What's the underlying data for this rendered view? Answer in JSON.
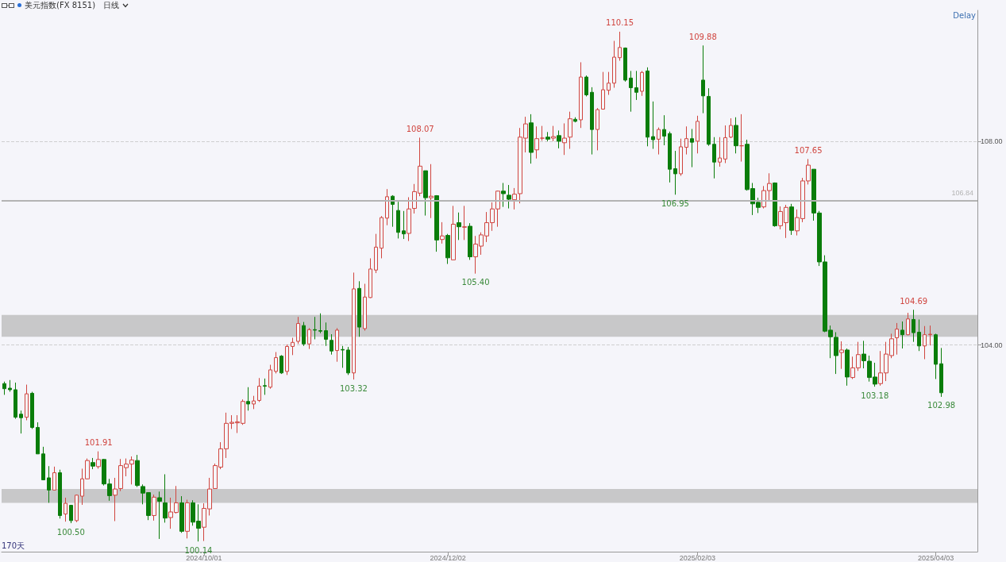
{
  "chart_data": {
    "type": "candlestick",
    "title": "美元指数(FX 8151)",
    "subtitle": "日线",
    "annotations": [
      "Delay",
      "170天",
      {
        "text": "110.15",
        "y": 110.15
      },
      {
        "text": "109.88",
        "y": 109.88
      },
      {
        "text": "108.07",
        "y": 108.07
      },
      {
        "text": "107.65",
        "y": 107.65
      },
      {
        "text": "106.95",
        "y": 106.95
      },
      {
        "text": "105.40",
        "y": 105.4
      },
      {
        "text": "104.69",
        "y": 104.69
      },
      {
        "text": "103.32",
        "y": 103.32
      },
      {
        "text": "103.18",
        "y": 103.18
      },
      {
        "text": "102.98",
        "y": 102.98
      },
      {
        "text": "101.91",
        "y": 101.91
      },
      {
        "text": "100.50",
        "y": 100.5
      },
      {
        "text": "100.14",
        "y": 100.14
      }
    ],
    "categories": [
      null,
      null,
      null,
      null,
      null,
      null,
      null,
      null,
      null,
      null,
      null,
      null,
      null,
      null,
      null,
      null,
      null,
      null,
      null,
      null,
      null,
      null,
      null,
      null,
      null,
      null,
      null,
      null,
      null,
      null,
      null,
      null,
      null,
      null,
      null,
      null,
      "2024/10/01",
      null,
      null,
      null,
      null,
      null,
      null,
      null,
      null,
      null,
      null,
      null,
      null,
      null,
      null,
      null,
      null,
      null,
      null,
      null,
      null,
      null,
      null,
      null,
      null,
      null,
      null,
      null,
      null,
      null,
      null,
      null,
      null,
      null,
      null,
      null,
      null,
      null,
      null,
      null,
      null,
      null,
      null,
      null,
      "2024/12/02",
      null,
      null,
      null,
      null,
      null,
      null,
      null,
      null,
      null,
      null,
      null,
      null,
      null,
      null,
      null,
      null,
      null,
      null,
      null,
      null,
      null,
      null,
      null,
      null,
      null,
      null,
      null,
      null,
      null,
      null,
      null,
      null,
      null,
      null,
      null,
      null,
      null,
      null,
      null,
      null,
      null,
      null,
      null,
      null,
      "2025/02/03",
      null,
      null,
      null,
      null,
      null,
      null,
      null,
      null,
      null,
      null,
      null,
      null,
      null,
      null,
      null,
      null,
      null,
      null,
      null,
      null,
      null,
      null,
      null,
      null,
      null,
      null,
      null,
      null,
      null,
      null,
      null,
      null,
      null,
      null,
      null,
      null,
      null,
      null,
      null,
      null,
      null,
      null,
      "2025/04/03",
      null
    ],
    "ohlc": [
      [
        103.24,
        103.28,
        103.02,
        103.14
      ],
      [
        103.15,
        103.31,
        103.08,
        103.12
      ],
      [
        103.12,
        103.26,
        102.55,
        102.58
      ],
      [
        102.64,
        102.71,
        102.26,
        102.57
      ],
      [
        102.58,
        103.22,
        102.52,
        103.04
      ],
      [
        103.05,
        103.08,
        102.35,
        102.38
      ],
      [
        102.38,
        102.48,
        101.86,
        101.86
      ],
      [
        101.86,
        102.0,
        101.35,
        101.35
      ],
      [
        101.39,
        101.62,
        100.9,
        101.15
      ],
      [
        101.15,
        101.61,
        101.15,
        101.49
      ],
      [
        101.49,
        101.55,
        100.59,
        100.65
      ],
      [
        100.68,
        101.0,
        100.53,
        100.89
      ],
      [
        100.85,
        100.86,
        100.5,
        100.55
      ],
      [
        100.55,
        101.06,
        100.52,
        101.05
      ],
      [
        101.03,
        101.57,
        100.86,
        101.37
      ],
      [
        101.37,
        101.77,
        101.36,
        101.73
      ],
      [
        101.69,
        101.78,
        101.56,
        101.62
      ],
      [
        101.61,
        101.91,
        101.57,
        101.75
      ],
      [
        101.75,
        101.76,
        101.24,
        101.27
      ],
      [
        101.27,
        101.37,
        100.94,
        101.04
      ],
      [
        101.05,
        101.39,
        100.54,
        101.17
      ],
      [
        101.18,
        101.76,
        101.13,
        101.63
      ],
      [
        101.59,
        101.77,
        101.42,
        101.66
      ],
      [
        101.66,
        101.81,
        101.26,
        101.74
      ],
      [
        101.73,
        101.84,
        101.21,
        101.24
      ],
      [
        101.22,
        101.26,
        100.87,
        101.09
      ],
      [
        101.1,
        101.1,
        100.56,
        100.65
      ],
      [
        100.65,
        101.06,
        100.55,
        101.01
      ],
      [
        101.0,
        101.12,
        100.19,
        100.93
      ],
      [
        100.9,
        101.46,
        100.51,
        100.6
      ],
      [
        100.61,
        101.0,
        100.39,
        100.72
      ],
      [
        100.71,
        101.23,
        100.69,
        100.9
      ],
      [
        100.9,
        101.03,
        100.31,
        100.34
      ],
      [
        100.34,
        100.96,
        100.2,
        100.9
      ],
      [
        100.9,
        100.95,
        100.45,
        100.52
      ],
      [
        100.54,
        100.87,
        100.14,
        100.4
      ],
      [
        100.42,
        100.89,
        100.15,
        100.79
      ],
      [
        100.78,
        101.39,
        100.65,
        101.17
      ],
      [
        101.18,
        101.67,
        101.18,
        101.63
      ],
      [
        101.6,
        102.09,
        101.56,
        101.96
      ],
      [
        101.96,
        102.67,
        101.78,
        102.46
      ],
      [
        102.46,
        102.62,
        102.35,
        102.48
      ],
      [
        102.47,
        102.62,
        102.27,
        102.49
      ],
      [
        102.46,
        102.93,
        102.43,
        102.89
      ],
      [
        102.89,
        103.17,
        102.71,
        102.84
      ],
      [
        102.84,
        103.0,
        102.74,
        102.9
      ],
      [
        102.91,
        103.35,
        102.88,
        103.19
      ],
      [
        103.2,
        103.34,
        103.02,
        103.19
      ],
      [
        103.17,
        103.61,
        103.14,
        103.51
      ],
      [
        103.48,
        103.86,
        103.44,
        103.75
      ],
      [
        103.78,
        103.8,
        103.43,
        103.45
      ],
      [
        103.48,
        104.01,
        103.41,
        103.97
      ],
      [
        103.97,
        104.14,
        103.8,
        104.05
      ],
      [
        104.07,
        104.55,
        104.02,
        104.42
      ],
      [
        104.38,
        104.45,
        103.98,
        104.02
      ],
      [
        104.02,
        104.33,
        103.92,
        104.3
      ],
      [
        104.3,
        104.55,
        104.11,
        104.29
      ],
      [
        104.28,
        104.62,
        104.23,
        104.27
      ],
      [
        104.28,
        104.44,
        103.98,
        104.11
      ],
      [
        104.09,
        104.21,
        103.81,
        103.88
      ],
      [
        103.89,
        104.33,
        103.67,
        104.29
      ],
      [
        103.91,
        103.98,
        103.55,
        103.9
      ],
      [
        103.9,
        103.96,
        103.41,
        103.45
      ],
      [
        103.45,
        105.42,
        103.32,
        105.1
      ],
      [
        105.11,
        105.25,
        104.16,
        104.35
      ],
      [
        104.32,
        105.2,
        104.28,
        104.94
      ],
      [
        104.93,
        105.7,
        104.92,
        105.49
      ],
      [
        105.47,
        106.18,
        105.41,
        105.92
      ],
      [
        105.9,
        106.53,
        105.7,
        106.5
      ],
      [
        106.49,
        107.06,
        106.35,
        106.91
      ],
      [
        106.92,
        106.94,
        106.32,
        106.76
      ],
      [
        106.64,
        106.81,
        106.09,
        106.21
      ],
      [
        106.24,
        106.63,
        106.08,
        106.18
      ],
      [
        106.19,
        106.9,
        106.04,
        106.67
      ],
      [
        106.68,
        107.16,
        106.58,
        107.01
      ],
      [
        106.98,
        108.07,
        106.92,
        107.51
      ],
      [
        107.42,
        107.42,
        106.54,
        106.89
      ],
      [
        106.89,
        107.55,
        106.49,
        106.92
      ],
      [
        106.93,
        106.94,
        105.83,
        106.06
      ],
      [
        106.07,
        106.41,
        105.99,
        106.14
      ],
      [
        106.15,
        106.18,
        105.59,
        105.71
      ],
      [
        105.67,
        106.73,
        105.67,
        106.37
      ],
      [
        106.4,
        106.6,
        106.06,
        106.32
      ],
      [
        106.31,
        106.73,
        106.06,
        106.32
      ],
      [
        106.33,
        106.39,
        105.67,
        105.73
      ],
      [
        105.73,
        106.14,
        105.4,
        105.98
      ],
      [
        105.94,
        106.21,
        105.77,
        106.16
      ],
      [
        106.14,
        106.61,
        106.02,
        106.4
      ],
      [
        106.4,
        106.8,
        106.24,
        106.67
      ],
      [
        106.67,
        107.03,
        106.32,
        107.02
      ],
      [
        107.02,
        107.18,
        106.71,
        106.97
      ],
      [
        106.94,
        107.14,
        106.68,
        106.86
      ],
      [
        106.85,
        107.08,
        106.66,
        106.96
      ],
      [
        106.97,
        108.26,
        106.78,
        108.08
      ],
      [
        108.06,
        108.48,
        107.78,
        108.34
      ],
      [
        108.36,
        108.53,
        107.56,
        107.78
      ],
      [
        107.83,
        108.29,
        107.66,
        108.05
      ],
      [
        108.06,
        108.3,
        108.01,
        108.06
      ],
      [
        108.08,
        108.18,
        108.0,
        108.04
      ],
      [
        108.06,
        108.3,
        108.0,
        108.09
      ],
      [
        108.11,
        108.21,
        107.86,
        108.0
      ],
      [
        107.97,
        108.35,
        107.73,
        108.06
      ],
      [
        108.08,
        108.58,
        107.85,
        108.44
      ],
      [
        108.43,
        108.47,
        108.37,
        108.39
      ],
      [
        108.42,
        109.55,
        108.26,
        109.26
      ],
      [
        109.26,
        109.29,
        108.88,
        108.91
      ],
      [
        108.96,
        109.06,
        107.74,
        108.23
      ],
      [
        108.23,
        108.65,
        107.82,
        108.62
      ],
      [
        108.63,
        109.36,
        108.62,
        109.01
      ],
      [
        109.0,
        109.36,
        108.91,
        109.14
      ],
      [
        109.14,
        109.97,
        109.05,
        109.65
      ],
      [
        109.64,
        110.15,
        109.58,
        109.84
      ],
      [
        109.83,
        109.84,
        109.17,
        109.2
      ],
      [
        109.24,
        109.38,
        108.58,
        109.05
      ],
      [
        109.05,
        109.38,
        108.81,
        108.96
      ],
      [
        108.98,
        109.38,
        108.89,
        109.35
      ],
      [
        109.38,
        109.45,
        107.9,
        108.08
      ],
      [
        108.09,
        108.78,
        107.85,
        108.03
      ],
      [
        108.04,
        108.27,
        107.74,
        108.23
      ],
      [
        108.23,
        108.51,
        107.92,
        108.1
      ],
      [
        108.15,
        108.19,
        107.19,
        107.45
      ],
      [
        107.46,
        107.81,
        106.95,
        107.36
      ],
      [
        107.36,
        108.05,
        107.32,
        107.89
      ],
      [
        107.88,
        108.29,
        107.74,
        108.05
      ],
      [
        108.05,
        108.24,
        107.49,
        107.98
      ],
      [
        108.0,
        108.5,
        107.76,
        108.39
      ],
      [
        109.2,
        109.88,
        108.55,
        108.89
      ],
      [
        108.88,
        109.04,
        107.91,
        107.94
      ],
      [
        107.94,
        108.08,
        107.27,
        107.59
      ],
      [
        107.59,
        108.08,
        107.5,
        107.67
      ],
      [
        107.65,
        108.31,
        107.57,
        108.07
      ],
      [
        108.08,
        108.45,
        108.06,
        108.31
      ],
      [
        108.31,
        108.47,
        107.76,
        107.91
      ],
      [
        107.91,
        108.53,
        107.6,
        107.91
      ],
      [
        107.94,
        108.03,
        107.03,
        107.05
      ],
      [
        107.07,
        107.18,
        106.55,
        106.77
      ],
      [
        106.8,
        106.89,
        106.59,
        106.7
      ],
      [
        106.71,
        107.12,
        106.68,
        107.03
      ],
      [
        107.03,
        107.37,
        106.84,
        107.17
      ],
      [
        107.18,
        107.19,
        106.32,
        106.34
      ],
      [
        106.34,
        106.72,
        106.27,
        106.62
      ],
      [
        106.4,
        106.75,
        106.1,
        106.7
      ],
      [
        106.71,
        106.77,
        106.16,
        106.25
      ],
      [
        106.24,
        106.66,
        106.15,
        106.5
      ],
      [
        106.48,
        107.28,
        106.41,
        107.22
      ],
      [
        107.22,
        107.65,
        107.15,
        107.53
      ],
      [
        107.45,
        107.45,
        106.44,
        106.59
      ],
      [
        106.59,
        106.63,
        105.55,
        105.63
      ],
      [
        105.63,
        105.76,
        104.25,
        104.27
      ],
      [
        104.29,
        104.38,
        103.74,
        104.16
      ],
      [
        104.15,
        104.25,
        103.43,
        103.79
      ],
      [
        103.85,
        104.07,
        103.53,
        103.9
      ],
      [
        103.9,
        103.93,
        103.2,
        103.37
      ],
      [
        103.36,
        103.77,
        103.33,
        103.55
      ],
      [
        103.55,
        104.06,
        103.49,
        103.81
      ],
      [
        103.82,
        104.08,
        103.54,
        103.69
      ],
      [
        103.68,
        103.79,
        103.28,
        103.36
      ],
      [
        103.37,
        103.65,
        103.18,
        103.23
      ],
      [
        103.24,
        103.88,
        103.2,
        103.45
      ],
      [
        103.45,
        104.06,
        103.29,
        103.82
      ],
      [
        103.79,
        104.22,
        103.74,
        104.12
      ],
      [
        104.14,
        104.43,
        103.81,
        104.31
      ],
      [
        104.29,
        104.46,
        103.93,
        104.2
      ],
      [
        104.2,
        104.63,
        104.19,
        104.51
      ],
      [
        104.5,
        104.69,
        104.06,
        104.24
      ],
      [
        104.25,
        104.5,
        103.88,
        103.98
      ],
      [
        103.98,
        104.37,
        103.72,
        104.2
      ],
      [
        104.2,
        104.38,
        103.99,
        104.21
      ],
      [
        104.2,
        104.22,
        103.33,
        103.62
      ],
      [
        103.63,
        103.94,
        102.98,
        103.06
      ]
    ],
    "ylim": [
      99.94,
      110.57
    ],
    "yticks": [
      {
        "value": 104,
        "label": "104.00"
      },
      {
        "value": 108,
        "label": "108.00"
      }
    ],
    "grid": "y",
    "ref_lines": [
      {
        "axis": "y",
        "value": 106.84,
        "label": "106.84",
        "color": "#b4b4b4"
      }
    ],
    "bands": [
      {
        "axis": "y",
        "from": 100.9,
        "to": 101.17,
        "color": "#c0c0c0"
      },
      {
        "axis": "y",
        "from": 104.16,
        "to": 104.59,
        "color": "#c0c0c0"
      }
    ]
  }
}
